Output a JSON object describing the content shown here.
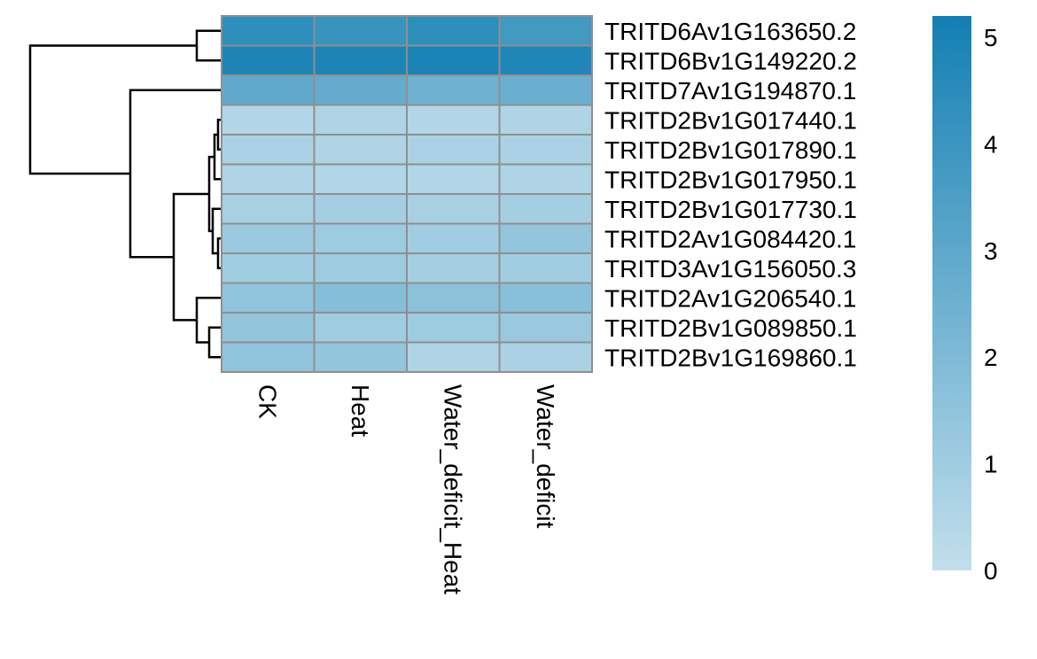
{
  "chart_data": {
    "type": "heatmap",
    "title": "",
    "columns": [
      "CK",
      "Heat",
      "Water_deficit_Heat",
      "Water_deficit"
    ],
    "rows": [
      "TRITD6Av1G163650.2",
      "TRITD6Bv1G149220.2",
      "TRITD7Av1G194870.1",
      "TRITD2Bv1G017440.1",
      "TRITD2Bv1G017890.1",
      "TRITD2Bv1G017950.1",
      "TRITD2Bv1G017730.1",
      "TRITD2Av1G084420.1",
      "TRITD3Av1G156050.3",
      "TRITD2Av1G206540.1",
      "TRITD2Bv1G089850.1",
      "TRITD2Bv1G169860.1"
    ],
    "values": [
      [
        4.4,
        4.1,
        4.4,
        3.8
      ],
      [
        4.9,
        4.9,
        5.0,
        4.8
      ],
      [
        2.9,
        2.8,
        2.5,
        2.6
      ],
      [
        0.5,
        0.6,
        0.5,
        0.6
      ],
      [
        0.7,
        0.6,
        0.7,
        0.7
      ],
      [
        0.6,
        0.5,
        0.5,
        0.6
      ],
      [
        0.8,
        0.9,
        0.8,
        0.9
      ],
      [
        1.2,
        1.1,
        1.0,
        1.4
      ],
      [
        1.0,
        1.1,
        0.9,
        1.0
      ],
      [
        1.5,
        1.8,
        1.6,
        1.7
      ],
      [
        1.4,
        1.0,
        1.1,
        1.2
      ],
      [
        1.5,
        1.4,
        0.6,
        0.7
      ]
    ],
    "colorbar": {
      "min": 0,
      "max": 5.2,
      "ticks": [
        0,
        1,
        2,
        3,
        4,
        5
      ],
      "low_color": "#c2dfec",
      "high_color": "#137fb3"
    },
    "dendrogram_color": "#000000",
    "cell_border_color": "#8f8f8f"
  }
}
